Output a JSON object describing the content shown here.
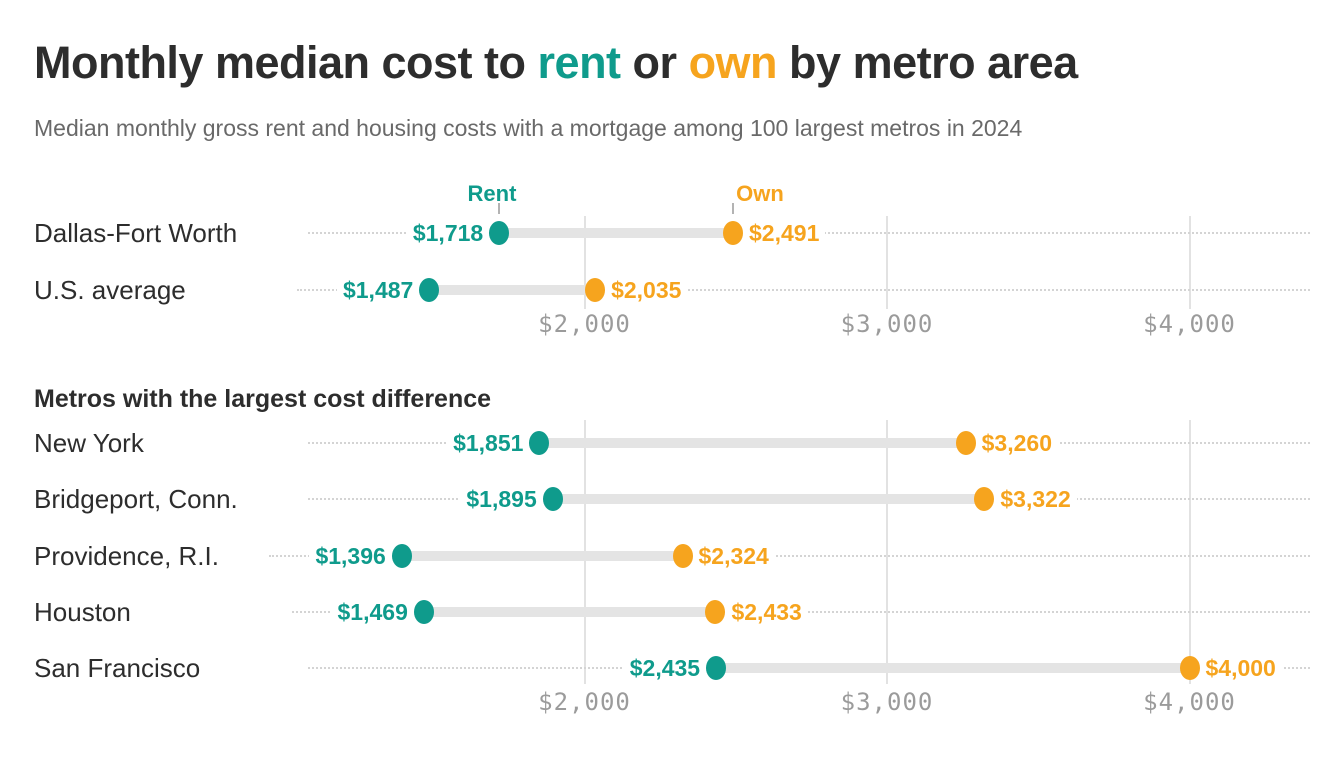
{
  "header": {
    "title_parts": {
      "lead": "Monthly median cost to ",
      "rent_word": "rent",
      "mid": " or ",
      "own_word": "own",
      "tail": " by metro area"
    },
    "subtitle": "Median monthly gross rent and housing costs with a mortgage among 100 largest metros in 2024"
  },
  "legend": {
    "rent_label": "Rent",
    "own_label": "Own"
  },
  "colors": {
    "rent": "#0f9b8c",
    "own": "#f6a41e",
    "text_dark": "#2d2d2d",
    "text_muted": "#696969",
    "axis_label": "#9b9b9b",
    "gridline": "#e2e2e2",
    "leader_dot": "#d4d4d4",
    "connector_bar": "#e4e4e4",
    "legend_tick": "#b3b3b3"
  },
  "chart_data": {
    "type": "dumbbell",
    "title": "Monthly median cost to rent or own by metro area",
    "subtitle": "Median monthly gross rent and housing costs with a mortgage among 100 largest metros in 2024",
    "unit": "US dollars per month",
    "series": [
      "Rent",
      "Own"
    ],
    "x_axis": {
      "tick_values": [
        2000,
        3000,
        4000
      ],
      "tick_labels": [
        "$2,000",
        "$3,000",
        "$4,000"
      ],
      "grid": true
    },
    "sections": [
      {
        "heading": "",
        "rows": [
          {
            "metro": "Dallas-Fort Worth",
            "rent": 1718,
            "own": 2491,
            "rent_label": "$1,718",
            "own_label": "$2,491"
          },
          {
            "metro": "U.S. average",
            "rent": 1487,
            "own": 2035,
            "rent_label": "$1,487",
            "own_label": "$2,035"
          }
        ]
      },
      {
        "heading": "Metros with the largest cost difference",
        "rows": [
          {
            "metro": "New York",
            "rent": 1851,
            "own": 3260,
            "rent_label": "$1,851",
            "own_label": "$3,260"
          },
          {
            "metro": "Bridgeport, Conn.",
            "rent": 1895,
            "own": 3322,
            "rent_label": "$1,895",
            "own_label": "$3,322"
          },
          {
            "metro": "Providence, R.I.",
            "rent": 1396,
            "own": 2324,
            "rent_label": "$1,396",
            "own_label": "$2,324"
          },
          {
            "metro": "Houston",
            "rent": 1469,
            "own": 2433,
            "rent_label": "$1,469",
            "own_label": "$2,433"
          },
          {
            "metro": "San Francisco",
            "rent": 2435,
            "own": 4000,
            "rent_label": "$2,435",
            "own_label": "$4,000"
          }
        ]
      }
    ]
  }
}
